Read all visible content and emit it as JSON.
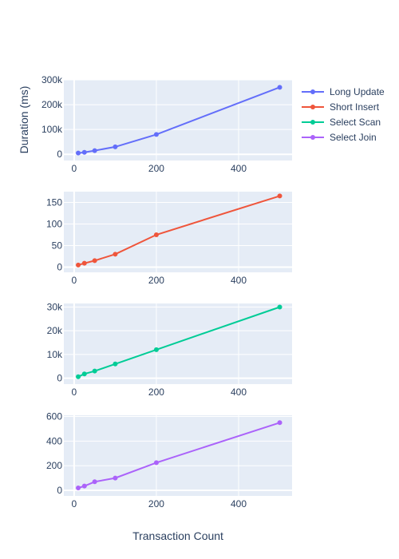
{
  "chart_data": {
    "type": "line",
    "xlabel": "Transaction Count",
    "ylabel": "Duration (ms)",
    "legend_position": "right",
    "grid": true,
    "xlim": [
      -25,
      530
    ],
    "x_ticks": [
      0,
      200,
      400
    ],
    "subplots": [
      {
        "series_name": "Long Update",
        "color": "#636efa",
        "x": [
          10,
          25,
          50,
          100,
          200,
          500
        ],
        "values": [
          5000,
          8000,
          15000,
          30000,
          80000,
          270000
        ],
        "ylim": [
          -25000,
          300000
        ],
        "y_ticks": [
          0,
          100000,
          200000,
          300000
        ],
        "y_tick_labels": [
          "0",
          "100k",
          "200k",
          "300k"
        ]
      },
      {
        "series_name": "Short Insert",
        "color": "#ef553b",
        "x": [
          10,
          25,
          50,
          100,
          200,
          500
        ],
        "values": [
          5,
          9,
          15,
          30,
          75,
          165
        ],
        "ylim": [
          -12,
          175
        ],
        "y_ticks": [
          0,
          50,
          100,
          150
        ],
        "y_tick_labels": [
          "0",
          "50",
          "100",
          "150"
        ]
      },
      {
        "series_name": "Select Scan",
        "color": "#00cc96",
        "x": [
          10,
          25,
          50,
          100,
          200,
          500
        ],
        "values": [
          600,
          1800,
          3000,
          6000,
          12000,
          30000
        ],
        "ylim": [
          -2500,
          31500
        ],
        "y_ticks": [
          0,
          10000,
          20000,
          30000
        ],
        "y_tick_labels": [
          "0",
          "10k",
          "20k",
          "30k"
        ]
      },
      {
        "series_name": "Select Join",
        "color": "#ab63fa",
        "x": [
          10,
          25,
          50,
          100,
          200,
          500
        ],
        "values": [
          20,
          35,
          70,
          100,
          225,
          550
        ],
        "ylim": [
          -45,
          610
        ],
        "y_ticks": [
          0,
          200,
          400,
          600
        ],
        "y_tick_labels": [
          "0",
          "200",
          "400",
          "600"
        ]
      }
    ]
  }
}
